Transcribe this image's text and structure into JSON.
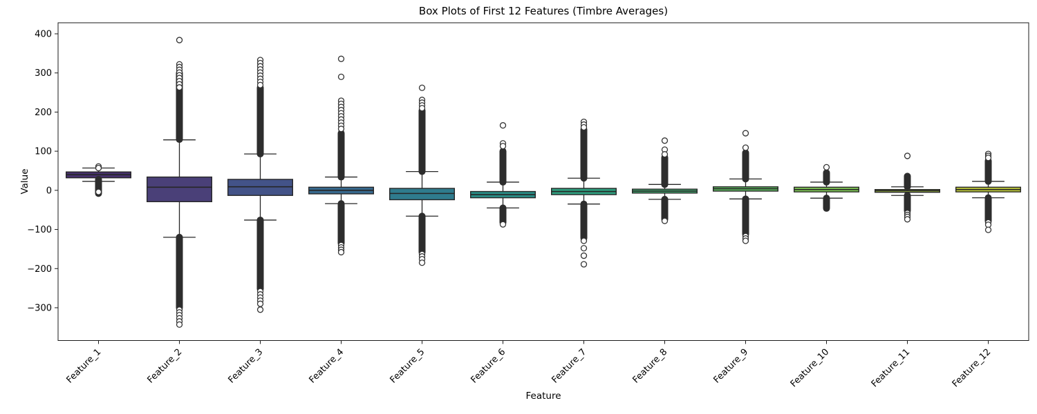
{
  "chart_data": {
    "type": "box",
    "title": "Box Plots of First 12 Features (Timbre Averages)",
    "xlabel": "Feature",
    "ylabel": "Value",
    "ylim": [
      -383.8,
      428.2
    ],
    "yticks": [
      400,
      300,
      200,
      100,
      0,
      -100,
      -200,
      -300
    ],
    "grid": false,
    "legend": null,
    "edge_color": "#262626",
    "flier_color": "#333333",
    "categories": [
      "Feature_1",
      "Feature_2",
      "Feature_3",
      "Feature_4",
      "Feature_5",
      "Feature_6",
      "Feature_7",
      "Feature_8",
      "Feature_9",
      "Feature_10",
      "Feature_11",
      "Feature_12"
    ],
    "features": [
      {
        "name": "Feature_1",
        "color": "#46306b",
        "q1": 32,
        "median": 40,
        "q3": 47,
        "whisker_low": 23,
        "whisker_high": 57,
        "dense_high": null,
        "dense_low": [
          28,
          -8
        ],
        "circles_high": [
          61,
          57
        ],
        "circles_low": [
          -4
        ]
      },
      {
        "name": "Feature_2",
        "color": "#4a4078",
        "q1": -29,
        "median": 8,
        "q3": 34,
        "whisker_low": -120,
        "whisker_high": 129,
        "dense_high": [
          130,
          300
        ],
        "dense_low": [
          -120,
          -300
        ],
        "circles_high": [
          384,
          322,
          315,
          308,
          301,
          294,
          287,
          279,
          271,
          263
        ],
        "circles_low": [
          -305,
          -312,
          -319,
          -327,
          -335,
          -343
        ]
      },
      {
        "name": "Feature_3",
        "color": "#435388",
        "q1": -13,
        "median": 9,
        "q3": 28,
        "whisker_low": -76,
        "whisker_high": 93,
        "dense_high": [
          93,
          262
        ],
        "dense_low": [
          -76,
          -252
        ],
        "circles_high": [
          333,
          325,
          317,
          309,
          301,
          293,
          285,
          277,
          269
        ],
        "circles_low": [
          -258,
          -266,
          -274,
          -282,
          -290,
          -305
        ]
      },
      {
        "name": "Feature_4",
        "color": "#37688c",
        "q1": -9,
        "median": 0,
        "q3": 8,
        "whisker_low": -34,
        "whisker_high": 34,
        "dense_high": [
          34,
          146
        ],
        "dense_low": [
          -34,
          -135
        ],
        "circles_high": [
          336,
          290,
          229,
          221,
          213,
          205,
          197,
          189,
          181,
          173,
          165,
          157
        ],
        "circles_low": [
          -140,
          -146,
          -152,
          -158
        ]
      },
      {
        "name": "Feature_5",
        "color": "#2f7b8d",
        "q1": -24,
        "median": -8,
        "q3": 5,
        "whisker_low": -66,
        "whisker_high": 48,
        "dense_high": [
          48,
          204
        ],
        "dense_low": [
          -66,
          -158
        ],
        "circles_high": [
          262,
          231,
          224,
          217,
          210
        ],
        "circles_low": [
          -163,
          -169,
          -176,
          -185
        ]
      },
      {
        "name": "Feature_6",
        "color": "#2a8c85",
        "q1": -19,
        "median": -11,
        "q3": -3,
        "whisker_low": -45,
        "whisker_high": 21,
        "dense_high": [
          21,
          100
        ],
        "dense_low": [
          -45,
          -82
        ],
        "circles_high": [
          166,
          120,
          113
        ],
        "circles_low": [
          -87
        ]
      },
      {
        "name": "Feature_7",
        "color": "#2f9d7e",
        "q1": -11,
        "median": -3,
        "q3": 5,
        "whisker_low": -35,
        "whisker_high": 31,
        "dense_high": [
          31,
          155
        ],
        "dense_low": [
          -35,
          -122
        ],
        "circles_high": [
          175,
          168,
          161
        ],
        "circles_low": [
          -129,
          -148,
          -167,
          -189
        ]
      },
      {
        "name": "Feature_8",
        "color": "#44ab72",
        "q1": -7,
        "median": -2,
        "q3": 3,
        "whisker_low": -23,
        "whisker_high": 15,
        "dense_high": [
          15,
          84
        ],
        "dense_low": [
          -23,
          -74
        ],
        "circles_high": [
          127,
          104,
          92
        ],
        "circles_low": [
          -78
        ]
      },
      {
        "name": "Feature_9",
        "color": "#5fba61",
        "q1": -2,
        "median": 4,
        "q3": 9,
        "whisker_low": -22,
        "whisker_high": 29,
        "dense_high": [
          29,
          96
        ],
        "dense_low": [
          -22,
          -112
        ],
        "circles_high": [
          146,
          109
        ],
        "circles_low": [
          -117,
          -123,
          -129
        ]
      },
      {
        "name": "Feature_10",
        "color": "#7fc755",
        "q1": -4,
        "median": 2,
        "q3": 8,
        "whisker_low": -20,
        "whisker_high": 21,
        "dense_high": [
          21,
          45
        ],
        "dense_low": [
          -20,
          -46
        ],
        "circles_high": [
          59
        ],
        "circles_low": []
      },
      {
        "name": "Feature_11",
        "color": "#a2bf45",
        "q1": -5,
        "median": -1,
        "q3": 2,
        "whisker_low": -13,
        "whisker_high": 9,
        "dense_high": [
          9,
          36
        ],
        "dense_low": [
          -13,
          -52
        ],
        "circles_high": [
          88
        ],
        "circles_low": [
          -58,
          -63,
          -68,
          -74
        ]
      },
      {
        "name": "Feature_12",
        "color": "#bcc739",
        "q1": -4,
        "median": 2,
        "q3": 8,
        "whisker_low": -19,
        "whisker_high": 23,
        "dense_high": [
          23,
          75
        ],
        "dense_low": [
          -19,
          -78
        ],
        "circles_high": [
          93,
          88,
          83
        ],
        "circles_low": [
          -82,
          -88,
          -101
        ]
      }
    ]
  }
}
